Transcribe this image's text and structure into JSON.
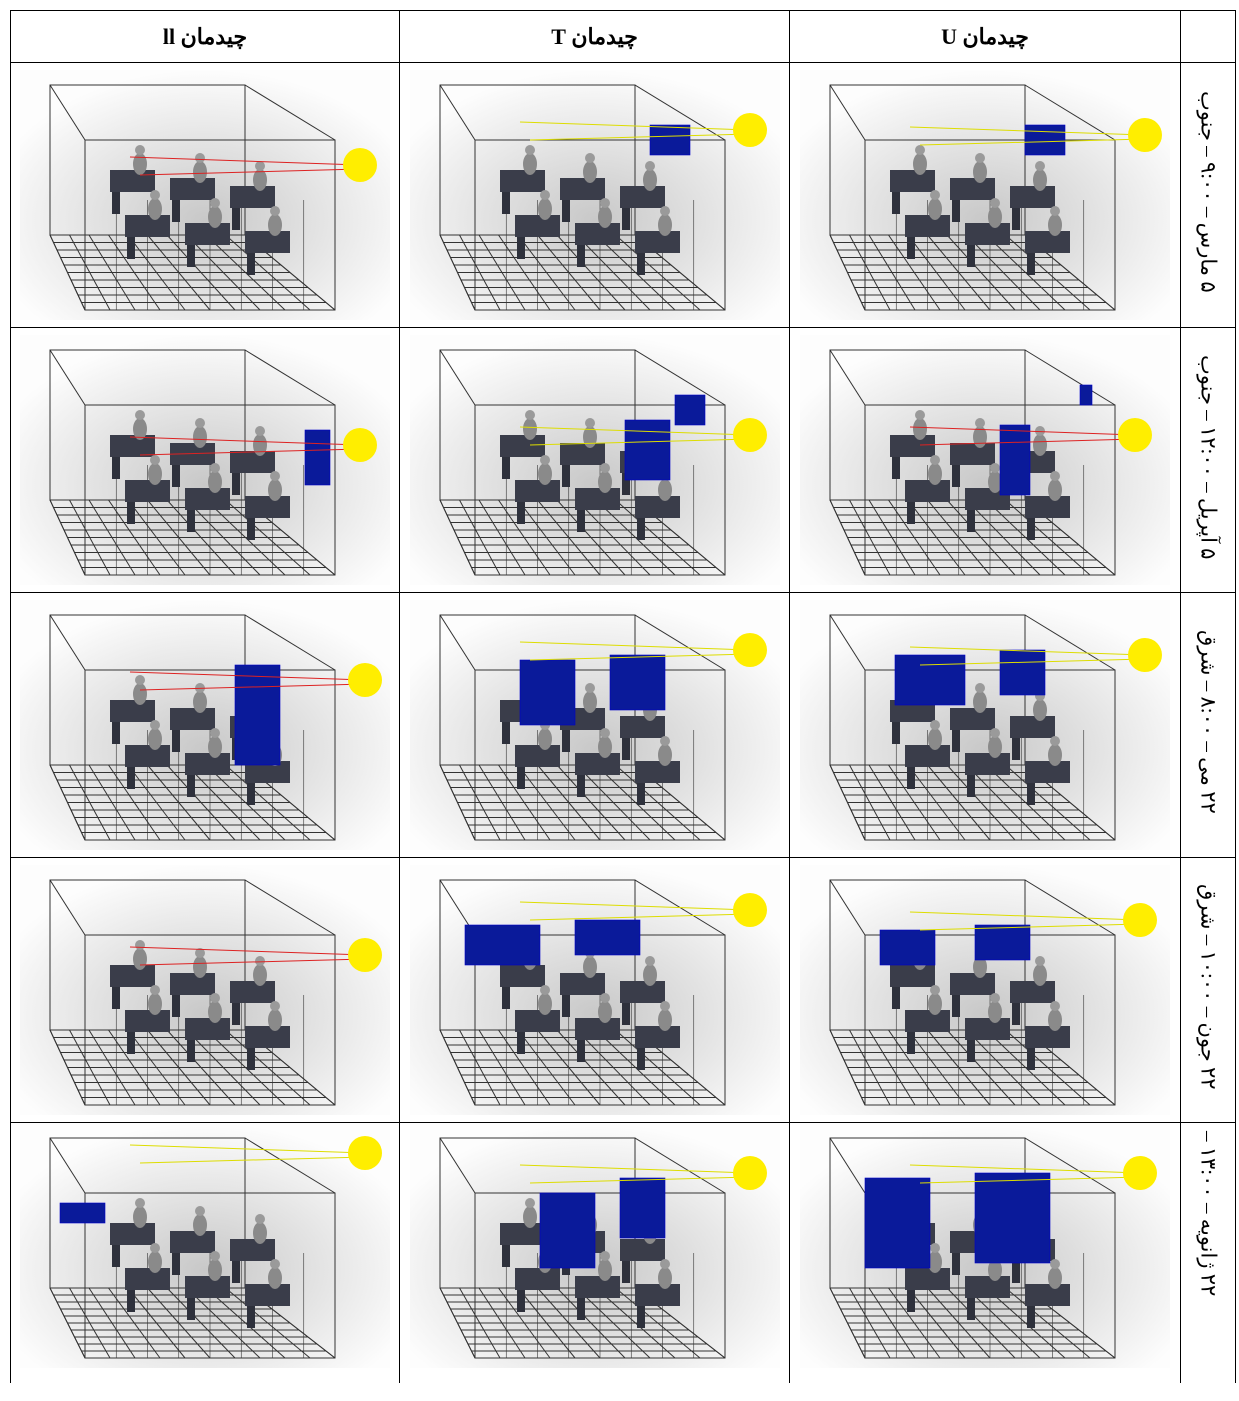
{
  "table": {
    "columns": [
      "چیدمان ll",
      "چیدمان T",
      "چیدمان U"
    ],
    "rows": [
      "۵ مارس – ۹:۰۰ – جنوب",
      "۵ آپریل – ۱۲:۰۰ – جنوب",
      "۲۲ می – ۸:۰۰ – شرق",
      "۲۲ جون – ۱۰:۰۰ – شرق",
      "۲۲ ژانویه – ۱۳:۰۰ –"
    ]
  }
}
